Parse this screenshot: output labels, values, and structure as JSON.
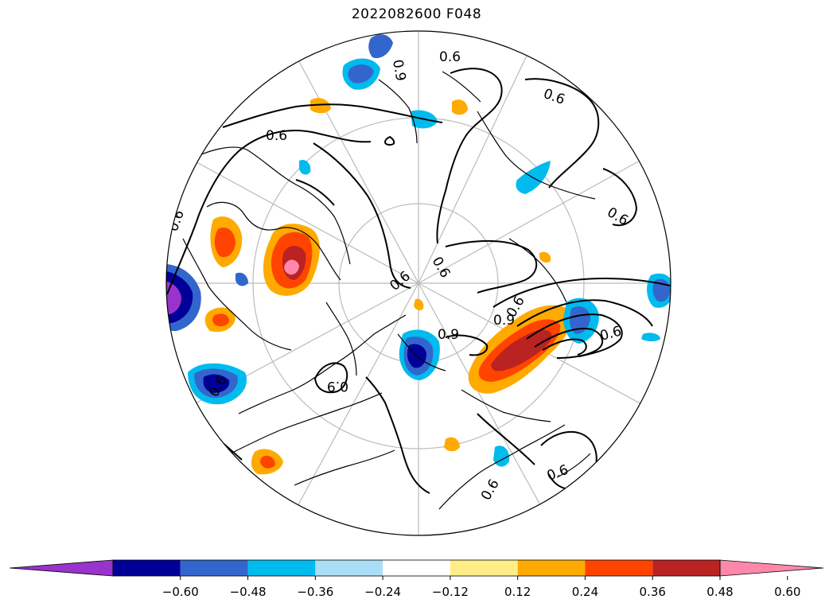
{
  "title": "2022082600 F048",
  "colorbar": {
    "ticks": [
      "−0.60",
      "−0.48",
      "−0.36",
      "−0.24",
      "−0.12",
      "0.12",
      "0.24",
      "0.36",
      "0.48",
      "0.60"
    ],
    "colors": [
      "#9933cc",
      "#000099",
      "#3366cc",
      "#00bbee",
      "#aaddf6",
      "#ffffff",
      "#ffee88",
      "#ffaa00",
      "#ff4400",
      "#bb2222",
      "#ff88aa"
    ]
  },
  "contour_labels": [
    "0.6",
    "0.6",
    "0.6",
    "0.6",
    "0.6",
    "0.6",
    "0.6",
    "0.6",
    "0.6",
    "0.6",
    "0.9",
    "0.9",
    "0.9",
    "0.9",
    "0.6",
    "0.6"
  ]
}
